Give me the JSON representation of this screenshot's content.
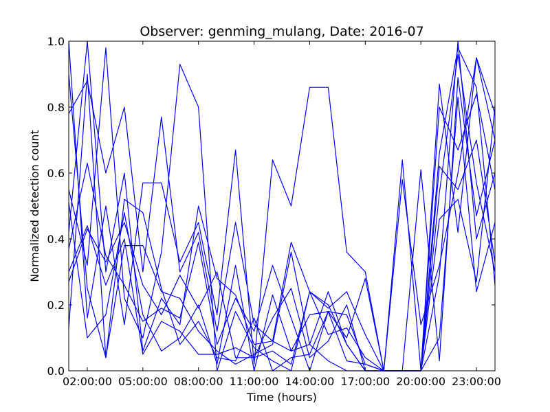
{
  "chart_data": {
    "type": "line",
    "title": "Observer: genming_mulang, Date: 2016-07",
    "xlabel": "Time (hours)",
    "ylabel": "Normalized detection count",
    "xlim": [
      1,
      24
    ],
    "ylim": [
      0,
      1
    ],
    "xticks": [
      {
        "value": 2,
        "label": "02:00:00"
      },
      {
        "value": 5,
        "label": "05:00:00"
      },
      {
        "value": 8,
        "label": "08:00:00"
      },
      {
        "value": 11,
        "label": "11:00:00"
      },
      {
        "value": 14,
        "label": "14:00:00"
      },
      {
        "value": 17,
        "label": "17:00:00"
      },
      {
        "value": 20,
        "label": "20:00:00"
      },
      {
        "value": 23,
        "label": "23:00:00"
      }
    ],
    "yticks": [
      {
        "value": 0.0,
        "label": "0.0"
      },
      {
        "value": 0.2,
        "label": "0.2"
      },
      {
        "value": 0.4,
        "label": "0.4"
      },
      {
        "value": 0.6,
        "label": "0.6"
      },
      {
        "value": 0.8,
        "label": "0.8"
      },
      {
        "value": 1.0,
        "label": "1.0"
      }
    ],
    "grid": false,
    "color": "#0000ff",
    "x": [
      1,
      2,
      3,
      4,
      5,
      6,
      7,
      8,
      9,
      10,
      11,
      12,
      13,
      14,
      15,
      16,
      17,
      18,
      19,
      20,
      21,
      22,
      23,
      24
    ],
    "series": [
      {
        "values": [
          0.78,
          0.88,
          0.6,
          0.8,
          0.3,
          0.77,
          0.3,
          0.42,
          0.12,
          0.45,
          0.14,
          0.09,
          0.06,
          0.17,
          0.18,
          0.1,
          0.28,
          0.0,
          0.0,
          0.0,
          0.66,
          0.98,
          0.86,
          0.26
        ]
      },
      {
        "values": [
          1.0,
          0.16,
          0.5,
          0.14,
          0.57,
          0.57,
          0.33,
          0.45,
          0.17,
          0.67,
          0.02,
          0.64,
          0.5,
          0.86,
          0.86,
          0.36,
          0.3,
          0.0,
          0.0,
          0.0,
          0.87,
          0.42,
          0.95,
          0.78
        ]
      },
      {
        "values": [
          0.42,
          1.0,
          0.3,
          0.6,
          0.06,
          0.22,
          0.14,
          0.5,
          0.28,
          0.23,
          0.08,
          0.09,
          0.39,
          0.24,
          0.19,
          0.24,
          0.11,
          0.0,
          0.58,
          0.14,
          0.32,
          0.6,
          0.95,
          0.7
        ]
      },
      {
        "values": [
          0.27,
          0.43,
          0.33,
          0.45,
          0.26,
          0.17,
          0.29,
          0.19,
          0.3,
          0.04,
          0.04,
          0.06,
          0.02,
          0.24,
          0.2,
          0.08,
          0.0,
          0.0,
          0.0,
          0.0,
          0.54,
          0.96,
          0.57,
          0.3
        ]
      },
      {
        "values": [
          0.9,
          0.25,
          0.04,
          0.38,
          0.38,
          0.24,
          0.22,
          0.12,
          0.06,
          0.02,
          0.05,
          0.08,
          0.36,
          0.08,
          0.03,
          0.0,
          0.0,
          0.0,
          0.0,
          0.0,
          0.8,
          0.67,
          0.84,
          0.55
        ]
      },
      {
        "values": [
          0.37,
          0.63,
          0.35,
          0.26,
          0.15,
          0.19,
          0.16,
          0.39,
          0.08,
          0.22,
          0.12,
          0.32,
          0.16,
          0.0,
          0.18,
          0.03,
          0.02,
          0.0,
          0.0,
          0.61,
          0.03,
          0.89,
          0.47,
          0.7
        ]
      },
      {
        "values": [
          0.51,
          0.1,
          0.17,
          0.48,
          0.17,
          0.06,
          0.1,
          0.2,
          0.02,
          0.32,
          0.0,
          0.23,
          0.06,
          0.08,
          0.24,
          0.08,
          0.0,
          0.0,
          0.0,
          0.0,
          0.46,
          0.52,
          0.27,
          0.8
        ]
      },
      {
        "values": [
          0.13,
          0.9,
          0.04,
          0.52,
          0.48,
          0.25,
          0.08,
          0.15,
          0.04,
          0.03,
          0.16,
          0.0,
          0.04,
          0.05,
          0.18,
          0.17,
          0.02,
          0.0,
          0.64,
          0.0,
          0.29,
          1.0,
          0.4,
          0.6
        ]
      },
      {
        "values": [
          0.55,
          0.32,
          0.98,
          0.22,
          0.1,
          0.36,
          0.93,
          0.8,
          0.0,
          0.18,
          0.07,
          0.03,
          0.0,
          0.24,
          0.11,
          0.13,
          0.04,
          0.0,
          0.0,
          0.0,
          0.62,
          0.55,
          0.7,
          0.33
        ]
      },
      {
        "values": [
          0.3,
          0.44,
          0.26,
          0.4,
          0.05,
          0.15,
          0.12,
          0.05,
          0.05,
          0.07,
          0.04,
          0.16,
          0.25,
          0.04,
          0.09,
          0.2,
          0.0,
          0.0,
          0.0,
          0.0,
          0.1,
          0.83,
          0.24,
          0.45
        ]
      }
    ]
  }
}
